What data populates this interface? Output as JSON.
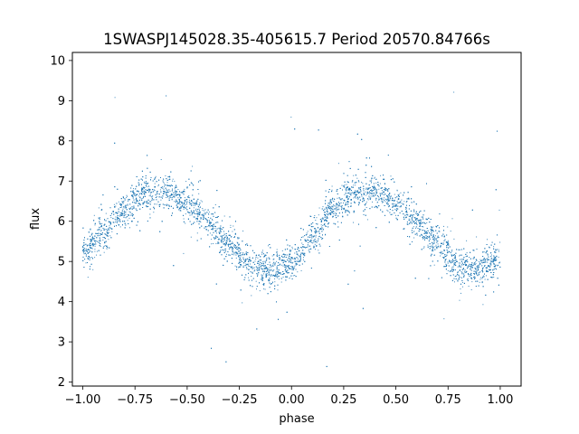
{
  "chart_data": {
    "type": "scatter",
    "title": "1SWASPJ145028.35-405615.7 Period 20570.84766s",
    "xlabel": "phase",
    "ylabel": "flux",
    "xlim": [
      -1.05,
      1.1
    ],
    "ylim": [
      1.9,
      10.2
    ],
    "x_ticks": [
      -1.0,
      -0.75,
      -0.5,
      -0.25,
      0.0,
      0.25,
      0.5,
      0.75,
      1.0
    ],
    "x_tick_labels": [
      "−1.00",
      "−0.75",
      "−0.50",
      "−0.25",
      "0.00",
      "0.25",
      "0.50",
      "0.75",
      "1.00"
    ],
    "y_ticks": [
      2,
      3,
      4,
      5,
      6,
      7,
      8,
      9,
      10
    ],
    "y_tick_labels": [
      "2",
      "3",
      "4",
      "5",
      "6",
      "7",
      "8",
      "9",
      "10"
    ],
    "grid": false,
    "legend": "none",
    "marker_color": "#1f77b4",
    "series": [
      {
        "x_range": [
          -1.0,
          1.0
        ],
        "trend": {
          "phase": [
            -1.0,
            -0.9,
            -0.8,
            -0.7,
            -0.6,
            -0.5,
            -0.4,
            -0.3,
            -0.2,
            -0.1,
            0.0,
            0.1,
            0.2,
            0.3,
            0.4,
            0.5,
            0.6,
            0.7,
            0.8,
            0.9,
            1.0
          ],
          "flux": [
            5.2,
            5.75,
            6.3,
            6.7,
            6.75,
            6.45,
            6.0,
            5.4,
            4.9,
            4.8,
            4.95,
            5.6,
            6.3,
            6.7,
            6.75,
            6.45,
            6.0,
            5.4,
            4.9,
            4.85,
            5.05
          ]
        },
        "scatter_sigma": 0.22,
        "outlier_range": [
          2.3,
          9.6
        ]
      }
    ]
  }
}
